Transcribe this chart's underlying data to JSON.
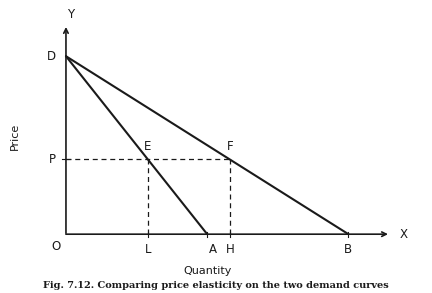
{
  "title": "Fig. 7.12. Comparing price elasticity on the two demand curves",
  "ylabel": "Price",
  "xlabel": "Quantity",
  "bg_color": "#ffffff",
  "line_color": "#1a1a1a",
  "dashed_color": "#1a1a1a",
  "figsize": [
    4.32,
    2.93
  ],
  "dpi": 100,
  "D_x": 0.0,
  "D_y": 10.0,
  "A_x": 5.0,
  "A_y": 0.0,
  "B_x": 10.0,
  "B_y": 0.0,
  "P_y": 4.2,
  "xlim": [
    -0.5,
    12.5
  ],
  "ylim": [
    -1.0,
    12.5
  ]
}
